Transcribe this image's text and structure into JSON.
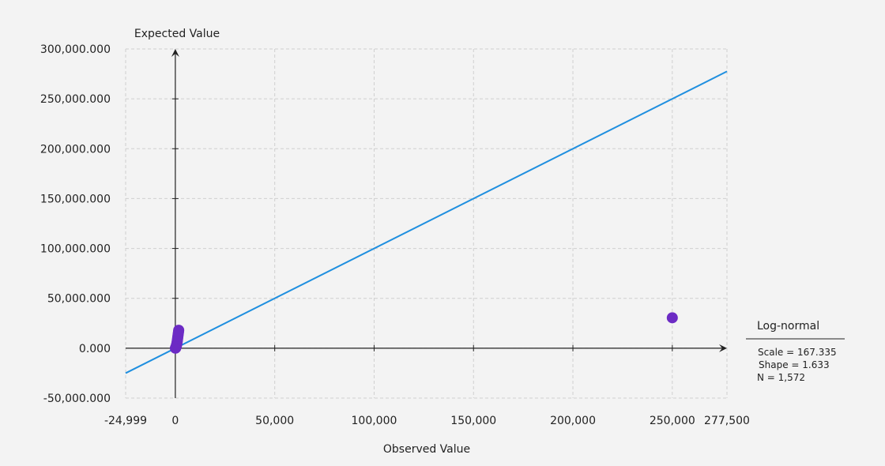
{
  "chart_data": {
    "type": "scatter",
    "title": "",
    "xlabel": "Observed Value",
    "ylabel": "Expected Value",
    "xlim": [
      -24999,
      277500
    ],
    "ylim": [
      -50000,
      300000
    ],
    "x_ticks": [
      {
        "value": -24999,
        "label": "-24,999"
      },
      {
        "value": 0,
        "label": "0"
      },
      {
        "value": 50000,
        "label": "50,000"
      },
      {
        "value": 100000,
        "label": "100,000"
      },
      {
        "value": 150000,
        "label": "150,000"
      },
      {
        "value": 200000,
        "label": "200,000"
      },
      {
        "value": 250000,
        "label": "250,000"
      },
      {
        "value": 277500,
        "label": "277,500"
      }
    ],
    "y_ticks": [
      {
        "value": -50000,
        "label": "-50,000.000"
      },
      {
        "value": 0,
        "label": "0.000"
      },
      {
        "value": 50000,
        "label": "50,000.000"
      },
      {
        "value": 100000,
        "label": "100,000.000"
      },
      {
        "value": 150000,
        "label": "150,000.000"
      },
      {
        "value": 200000,
        "label": "200,000.000"
      },
      {
        "value": 250000,
        "label": "250,000.000"
      },
      {
        "value": 300000,
        "label": "300,000.000"
      }
    ],
    "grid": true,
    "reference_line": {
      "x": [
        -24999,
        277500
      ],
      "y": [
        -24999,
        277500
      ],
      "color": "#1f8fdf"
    },
    "series": [
      {
        "color": "#6c2bc4",
        "points": [
          {
            "x": 50,
            "y": 0
          },
          {
            "x": 100,
            "y": 100
          },
          {
            "x": 150,
            "y": 300
          },
          {
            "x": 200,
            "y": 600
          },
          {
            "x": 300,
            "y": 1000
          },
          {
            "x": 400,
            "y": 1600
          },
          {
            "x": 500,
            "y": 2300
          },
          {
            "x": 600,
            "y": 3100
          },
          {
            "x": 700,
            "y": 4000
          },
          {
            "x": 800,
            "y": 5000
          },
          {
            "x": 900,
            "y": 6200
          },
          {
            "x": 1000,
            "y": 7500
          },
          {
            "x": 1100,
            "y": 9000
          },
          {
            "x": 1200,
            "y": 10500
          },
          {
            "x": 1300,
            "y": 12000
          },
          {
            "x": 1400,
            "y": 13500
          },
          {
            "x": 1500,
            "y": 15000
          },
          {
            "x": 1600,
            "y": 16500
          },
          {
            "x": 1700,
            "y": 18000
          },
          {
            "x": 250000,
            "y": 30500
          }
        ]
      }
    ],
    "legend": {
      "title": "Log-normal",
      "placement": "right",
      "stats": [
        "Scale = 167.335",
        "Shape = 1.633",
        "N = 1,572"
      ]
    }
  }
}
